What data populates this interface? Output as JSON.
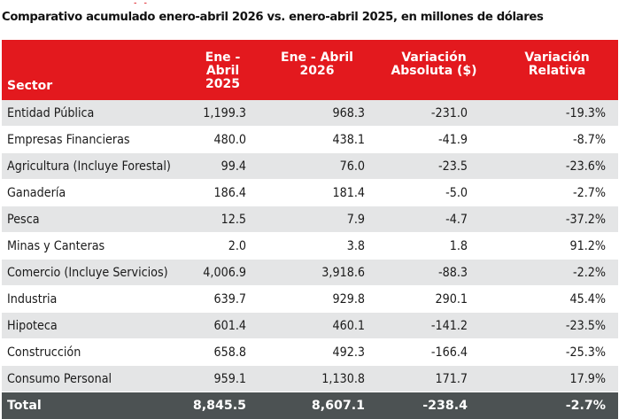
{
  "chart_data": {
    "type": "table",
    "title": "Comparativo acumulado enero-abril 2026 vs. enero-abril 2025, en millones de dólares",
    "columns": [
      "Sector",
      "Ene - Abril 2025",
      "Ene - Abril 2026",
      "Variación Absoluta ($)",
      "Variación Relativa"
    ],
    "column_lines": [
      [
        "Sector"
      ],
      [
        "Ene - Abril",
        "2025"
      ],
      [
        "Ene - Abril",
        "2026"
      ],
      [
        "Variación",
        "Absoluta ($)"
      ],
      [
        "Variación",
        "Relativa"
      ]
    ],
    "rows": [
      {
        "sector": "Entidad Pública",
        "y2025": "1,199.3",
        "y2026": "968.3",
        "abs": "-231.0",
        "rel": "-19.3%"
      },
      {
        "sector": "Empresas Financieras",
        "y2025": "480.0",
        "y2026": "438.1",
        "abs": "-41.9",
        "rel": "-8.7%"
      },
      {
        "sector": "Agricultura (Incluye Forestal)",
        "y2025": "99.4",
        "y2026": "76.0",
        "abs": "-23.5",
        "rel": "-23.6%"
      },
      {
        "sector": "Ganadería",
        "y2025": "186.4",
        "y2026": "181.4",
        "abs": "-5.0",
        "rel": "-2.7%"
      },
      {
        "sector": "Pesca",
        "y2025": "12.5",
        "y2026": "7.9",
        "abs": "-4.7",
        "rel": "-37.2%"
      },
      {
        "sector": "Minas y Canteras",
        "y2025": "2.0",
        "y2026": "3.8",
        "abs": "1.8",
        "rel": "91.2%"
      },
      {
        "sector": "Comercio (Incluye Servicios)",
        "y2025": "4,006.9",
        "y2026": "3,918.6",
        "abs": "-88.3",
        "rel": "-2.2%"
      },
      {
        "sector": "Industria",
        "y2025": "639.7",
        "y2026": "929.8",
        "abs": "290.1",
        "rel": "45.4%"
      },
      {
        "sector": "Hipoteca",
        "y2025": "601.4",
        "y2026": "460.1",
        "abs": "-141.2",
        "rel": "-23.5%"
      },
      {
        "sector": "Construcción",
        "y2025": "658.8",
        "y2026": "492.3",
        "abs": "-166.4",
        "rel": "-25.3%"
      },
      {
        "sector": "Consumo Personal",
        "y2025": "959.1",
        "y2026": "1,130.8",
        "abs": "171.7",
        "rel": "17.9%"
      }
    ],
    "total": {
      "sector": "Total",
      "y2025": "8,845.5",
      "y2026": "8,607.1",
      "abs": "-238.4",
      "rel": "-2.7%"
    }
  },
  "colors": {
    "header_bg": "#e3191e",
    "total_bg": "#4c5253",
    "stripe_bg": "#e4e5e6",
    "title_accent": "#e01e24"
  }
}
